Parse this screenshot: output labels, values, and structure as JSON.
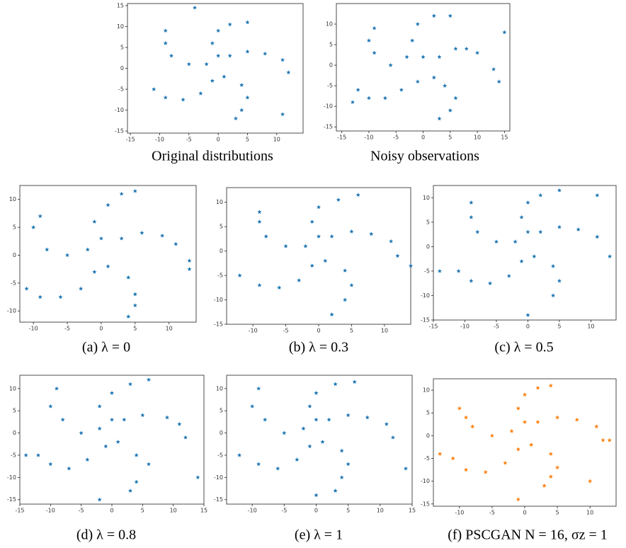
{
  "chart_data": [
    {
      "type": "scatter",
      "caption": "Original distributions",
      "color": "#1f77b4",
      "xlim": [
        -15.5,
        14.5
      ],
      "ylim": [
        -15.5,
        15.5
      ],
      "xticks": [
        -15,
        -10,
        -5,
        0,
        5,
        10
      ],
      "yticks": [
        -15,
        -10,
        -5,
        0,
        5,
        10,
        15
      ],
      "x": [
        0,
        -1,
        0,
        2,
        5,
        2,
        5,
        8,
        11,
        12,
        1,
        4,
        5,
        4,
        3,
        -2,
        -5,
        -8,
        -9,
        -9,
        -1,
        -3,
        -6,
        -9,
        -11,
        -4,
        11
      ],
      "y": [
        3,
        6,
        9,
        10.5,
        11,
        3,
        4,
        3.5,
        2,
        -1,
        -2,
        -4,
        -7,
        -10,
        -12,
        1,
        1,
        3,
        6,
        9,
        -3,
        -6,
        -7.5,
        -7,
        -5,
        14.5,
        -11
      ]
    },
    {
      "type": "scatter",
      "caption": "Noisy observations",
      "color": "#1f77b4",
      "xlim": [
        -16,
        16
      ],
      "ylim": [
        -16,
        15
      ],
      "xticks": [
        -15,
        -10,
        -5,
        0,
        5,
        10,
        15
      ],
      "yticks": [
        -15,
        -10,
        -5,
        0,
        5,
        10
      ],
      "x": [
        0,
        -2,
        -1,
        2,
        5,
        3,
        6,
        8,
        10,
        13,
        2,
        4,
        6,
        5,
        3,
        -3,
        -6,
        -9,
        -10,
        -9,
        -1,
        -4,
        -7,
        -10,
        -12,
        15,
        -13,
        14
      ],
      "y": [
        2,
        6,
        10,
        12,
        12,
        2,
        4,
        4,
        3,
        -1,
        -3,
        -5,
        -8,
        -11,
        -13,
        2,
        0,
        3,
        6,
        9,
        -4,
        -6,
        -8,
        -8,
        -6,
        8,
        -9,
        -4
      ]
    },
    {
      "type": "scatter",
      "caption": "(a) λ = 0",
      "color": "#1f77b4",
      "xlim": [
        -12,
        14
      ],
      "ylim": [
        -12,
        12.5
      ],
      "xticks": [
        -10,
        -5,
        0,
        5,
        10
      ],
      "yticks": [
        -10,
        -5,
        0,
        5,
        10
      ],
      "x": [
        0,
        -1,
        1,
        3,
        5,
        3,
        6,
        9,
        11,
        13,
        1,
        4,
        5,
        5,
        4,
        -2,
        -5,
        -8,
        -10,
        -9,
        -1,
        -3,
        -6,
        -9,
        -11,
        13
      ],
      "y": [
        3,
        6,
        9,
        11,
        11.5,
        3,
        4,
        3.5,
        2,
        -1,
        -2,
        -4,
        -7,
        -9,
        -11,
        1,
        0,
        1,
        5,
        7,
        -3,
        -6,
        -7.5,
        -7.5,
        -6,
        -2.5
      ]
    },
    {
      "type": "scatter",
      "caption": "(b) λ = 0.3",
      "color": "#1f77b4",
      "xlim": [
        -14,
        14
      ],
      "ylim": [
        -15,
        13
      ],
      "xticks": [
        -10,
        -5,
        0,
        5,
        10
      ],
      "yticks": [
        -15,
        -10,
        -5,
        0,
        5,
        10
      ],
      "x": [
        0,
        -1,
        0,
        3,
        6,
        2,
        5,
        8,
        11,
        12,
        1,
        4,
        5,
        4,
        2,
        -2,
        -5,
        -8,
        -9,
        -9,
        -1,
        -3,
        -6,
        -9,
        -12,
        14
      ],
      "y": [
        3,
        6,
        9,
        10.5,
        11.5,
        3,
        4,
        3.5,
        2,
        -1,
        -2,
        -4,
        -7,
        -10,
        -13,
        1,
        1,
        3,
        6,
        8,
        -3,
        -6,
        -7.5,
        -7,
        -5,
        -3
      ]
    },
    {
      "type": "scatter",
      "caption": "(c) λ = 0.5",
      "color": "#1f77b4",
      "xlim": [
        -15,
        14
      ],
      "ylim": [
        -15,
        12.5
      ],
      "xticks": [
        -15,
        -10,
        -5,
        0,
        5,
        10
      ],
      "yticks": [
        -15,
        -10,
        -5,
        0,
        5,
        10
      ],
      "x": [
        0,
        -1,
        0,
        2,
        5,
        2,
        5,
        8,
        11,
        13,
        1,
        4,
        5,
        4,
        0,
        -2,
        -5,
        -8,
        -9,
        -9,
        -1,
        -3,
        -6,
        -9,
        -11,
        -14,
        11
      ],
      "y": [
        3,
        6,
        9,
        10.5,
        11.5,
        3,
        4,
        3.5,
        2,
        -2,
        -2,
        -4,
        -7,
        -10,
        -14,
        1,
        1,
        3,
        6,
        9,
        -3,
        -6,
        -7.5,
        -7,
        -5,
        -5,
        10.5
      ]
    },
    {
      "type": "scatter",
      "caption": "(d) λ = 0.8",
      "color": "#1f77b4",
      "xlim": [
        -15,
        15
      ],
      "ylim": [
        -16,
        13
      ],
      "xticks": [
        -15,
        -10,
        -5,
        0,
        5,
        10,
        15
      ],
      "yticks": [
        -15,
        -10,
        -5,
        0,
        5,
        10
      ],
      "x": [
        0,
        -2,
        0,
        3,
        6,
        2,
        5,
        9,
        11,
        12,
        1,
        4,
        6,
        4,
        3,
        -2,
        -5,
        -8,
        -10,
        -9,
        -1,
        -4,
        -7,
        -10,
        -12,
        14,
        -14,
        -2
      ],
      "y": [
        3,
        6,
        9,
        11,
        12,
        3,
        4,
        3.5,
        2,
        -1,
        -2,
        -5,
        -7,
        -11,
        -13,
        1,
        0,
        3,
        6,
        10,
        -3,
        -6,
        -8,
        -7,
        -5,
        -10,
        -5,
        -15
      ]
    },
    {
      "type": "scatter",
      "caption": "(e) λ = 1",
      "color": "#1f77b4",
      "xlim": [
        -14,
        15
      ],
      "ylim": [
        -16,
        13
      ],
      "xticks": [
        -10,
        -5,
        0,
        5,
        10,
        15
      ],
      "yticks": [
        -15,
        -10,
        -5,
        0,
        5,
        10
      ],
      "x": [
        0,
        -1,
        0,
        3,
        6,
        2,
        5,
        8,
        11,
        12,
        1,
        4,
        5,
        4,
        3,
        -2,
        -5,
        -8,
        -10,
        -9,
        -1,
        -3,
        -6,
        -9,
        -12,
        14,
        0
      ],
      "y": [
        3,
        6,
        9,
        11,
        11.5,
        3,
        4,
        3.5,
        2,
        -1,
        -2,
        -4,
        -7,
        -10,
        -13,
        1,
        0,
        3,
        6,
        10,
        -3,
        -6,
        -8,
        -7,
        -5,
        -8,
        -14
      ]
    },
    {
      "type": "scatter",
      "caption": "(f) PSCGAN   N = 16, σz = 1",
      "color": "#ff7f0e",
      "xlim": [
        -14,
        14
      ],
      "ylim": [
        -15.5,
        12.5
      ],
      "xticks": [
        -10,
        -5,
        0,
        5,
        10
      ],
      "yticks": [
        -15,
        -10,
        -5,
        0,
        5,
        10
      ],
      "x": [
        0,
        -1,
        0,
        2,
        4,
        2,
        5,
        8,
        11,
        12,
        1,
        4,
        5,
        4,
        3,
        -2,
        -5,
        -8,
        -9,
        -10,
        -1,
        -3,
        -6,
        -9,
        -11,
        -13,
        10,
        13,
        -1
      ],
      "y": [
        3,
        6,
        9,
        10.5,
        11,
        3,
        4,
        3.5,
        2,
        -1,
        -2,
        -4,
        -7,
        -9,
        -11,
        1,
        0,
        2,
        4,
        6,
        -3,
        -6,
        -8,
        -7.5,
        -5,
        -4,
        -10,
        -1,
        -14
      ]
    }
  ]
}
